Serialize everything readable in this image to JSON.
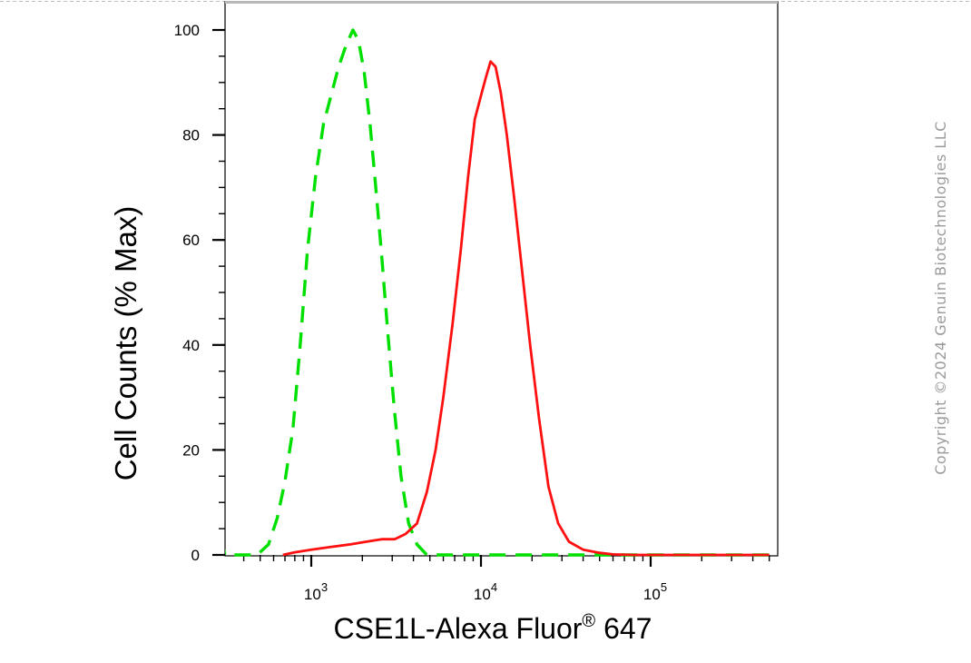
{
  "chart_data": {
    "type": "line",
    "title": "",
    "xlabel": "CSE1L-Alexa Fluor",
    "xlabel_superscript": "®",
    "xlabel_suffix": " 647",
    "ylabel": "Cell Counts (% Max)",
    "xscale": "log",
    "xlim": [
      270,
      500000
    ],
    "ylim": [
      0,
      105
    ],
    "ytick_labels": [
      "0",
      "20",
      "40",
      "60",
      "80",
      "100"
    ],
    "yticks": [
      0,
      20,
      40,
      60,
      80,
      100
    ],
    "xtick_labels": [
      {
        "base": "10",
        "exp": "3",
        "value": 1000
      },
      {
        "base": "10",
        "exp": "4",
        "value": 10000
      },
      {
        "base": "10",
        "exp": "5",
        "value": 100000
      }
    ],
    "grid": false,
    "legend": "none",
    "series": [
      {
        "color": "#00e000",
        "style": "dashed",
        "points": [
          [
            270,
            0
          ],
          [
            290,
            4
          ],
          [
            310,
            0
          ],
          [
            360,
            0
          ],
          [
            480,
            0
          ],
          [
            560,
            2
          ],
          [
            630,
            7
          ],
          [
            700,
            14
          ],
          [
            780,
            24
          ],
          [
            860,
            40
          ],
          [
            950,
            58
          ],
          [
            1060,
            72
          ],
          [
            1180,
            82
          ],
          [
            1320,
            88
          ],
          [
            1450,
            93
          ],
          [
            1600,
            97
          ],
          [
            1760,
            100
          ],
          [
            1900,
            98
          ],
          [
            2050,
            92
          ],
          [
            2220,
            82
          ],
          [
            2400,
            70
          ],
          [
            2600,
            57
          ],
          [
            2830,
            42
          ],
          [
            3080,
            28
          ],
          [
            3380,
            15
          ],
          [
            3750,
            6
          ],
          [
            4200,
            2
          ],
          [
            4800,
            0
          ],
          [
            6000,
            0
          ],
          [
            20000,
            0
          ],
          [
            500000,
            0
          ]
        ]
      },
      {
        "color": "#ff1010",
        "style": "solid",
        "points": [
          [
            680,
            0
          ],
          [
            800,
            0.5
          ],
          [
            1000,
            1
          ],
          [
            1300,
            1.5
          ],
          [
            1700,
            2
          ],
          [
            2100,
            2.5
          ],
          [
            2600,
            3
          ],
          [
            3100,
            3
          ],
          [
            3600,
            4
          ],
          [
            4200,
            6
          ],
          [
            4800,
            12
          ],
          [
            5400,
            20
          ],
          [
            6000,
            30
          ],
          [
            6800,
            44
          ],
          [
            7600,
            58
          ],
          [
            8400,
            72
          ],
          [
            9200,
            83
          ],
          [
            10100,
            88
          ],
          [
            10700,
            91
          ],
          [
            11400,
            94
          ],
          [
            12200,
            93
          ],
          [
            13100,
            88
          ],
          [
            14200,
            80
          ],
          [
            15700,
            68
          ],
          [
            17500,
            54
          ],
          [
            19500,
            40
          ],
          [
            22000,
            26
          ],
          [
            25000,
            13
          ],
          [
            28500,
            6
          ],
          [
            33000,
            2.5
          ],
          [
            40000,
            1
          ],
          [
            50000,
            0.4
          ],
          [
            60000,
            0.1
          ],
          [
            80000,
            0
          ],
          [
            500000,
            0
          ]
        ]
      }
    ]
  },
  "watermark": "Copyright ©2024 Genuin Biotechnologies LLC"
}
